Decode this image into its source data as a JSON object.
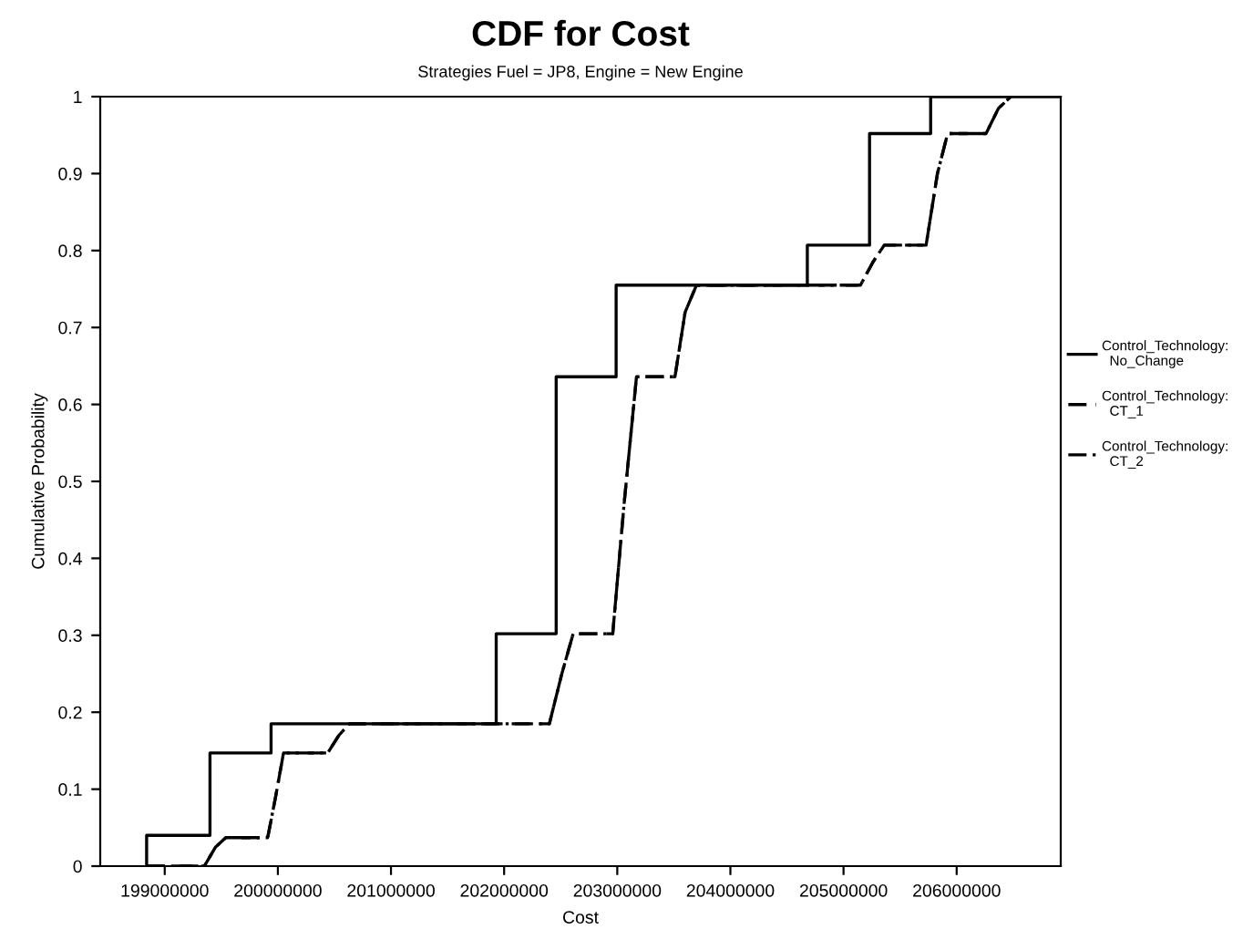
{
  "chart_data": {
    "type": "line",
    "title": "CDF for Cost",
    "subtitle": "Strategies Fuel = JP8, Engine = New Engine",
    "xlabel": "Cost",
    "ylabel": "Cumulative Probability",
    "xlim": [
      198430000,
      206920000
    ],
    "xticks": [
      {
        "value": 199000000,
        "label": "199000000"
      },
      {
        "value": 200000000,
        "label": "200000000"
      },
      {
        "value": 201000000,
        "label": "201000000"
      },
      {
        "value": 202000000,
        "label": "202000000"
      },
      {
        "value": 203000000,
        "label": "203000000"
      },
      {
        "value": 204000000,
        "label": "204000000"
      },
      {
        "value": 205000000,
        "label": "205000000"
      },
      {
        "value": 206000000,
        "label": "206000000"
      }
    ],
    "ylim": [
      0,
      1
    ],
    "yticks": [
      0,
      0.1,
      0.2,
      0.3,
      0.4,
      0.5,
      0.6,
      0.7,
      0.8,
      0.9,
      1
    ],
    "grid": false,
    "legend": "right",
    "marker": "none",
    "series": [
      {
        "name": "Control_Technology:\n  No_Change",
        "type": "step",
        "line_style": "solid",
        "color": "#000000",
        "x": [
          198840000,
          198840000,
          199400000,
          199940000,
          201930000,
          202460000,
          202990000,
          204680000,
          205230000,
          205770000,
          206900000
        ],
        "values": [
          0,
          0.04,
          0.147,
          0.185,
          0.302,
          0.636,
          0.755,
          0.807,
          0.952,
          1.0,
          1.0
        ]
      },
      {
        "name": "Control_Technology:\n  CT_1",
        "line_style": "dashed",
        "color": "#000000",
        "x": [
          198840000,
          199350000,
          199450000,
          199540000,
          199910000,
          199980000,
          200050000,
          200440000,
          200540000,
          200630000,
          202400000,
          202510000,
          202610000,
          202960000,
          203060000,
          203170000,
          203510000,
          203600000,
          203700000,
          205150000,
          205260000,
          205360000,
          205730000,
          205830000,
          205920000,
          206260000,
          206370000,
          206480000
        ],
        "values": [
          0,
          0,
          0.025,
          0.037,
          0.037,
          0.09,
          0.147,
          0.147,
          0.17,
          0.185,
          0.185,
          0.25,
          0.302,
          0.302,
          0.47,
          0.636,
          0.636,
          0.72,
          0.755,
          0.755,
          0.785,
          0.807,
          0.807,
          0.9,
          0.952,
          0.952,
          0.985,
          1.0
        ]
      },
      {
        "name": "Control_Technology:\n  CT_2",
        "line_style": "dashdot",
        "color": "#000000",
        "x": [
          198840000,
          199350000,
          199450000,
          199540000,
          199910000,
          199980000,
          200050000,
          200440000,
          200540000,
          200630000,
          202400000,
          202510000,
          202610000,
          202960000,
          203060000,
          203170000,
          203510000,
          203600000,
          203700000,
          205150000,
          205260000,
          205360000,
          205730000,
          205830000,
          205920000,
          206260000,
          206370000,
          206480000
        ],
        "values": [
          0,
          0,
          0.025,
          0.037,
          0.037,
          0.09,
          0.147,
          0.147,
          0.17,
          0.185,
          0.185,
          0.25,
          0.302,
          0.302,
          0.47,
          0.636,
          0.636,
          0.72,
          0.755,
          0.755,
          0.785,
          0.807,
          0.807,
          0.9,
          0.952,
          0.952,
          0.985,
          1.0
        ]
      }
    ]
  }
}
